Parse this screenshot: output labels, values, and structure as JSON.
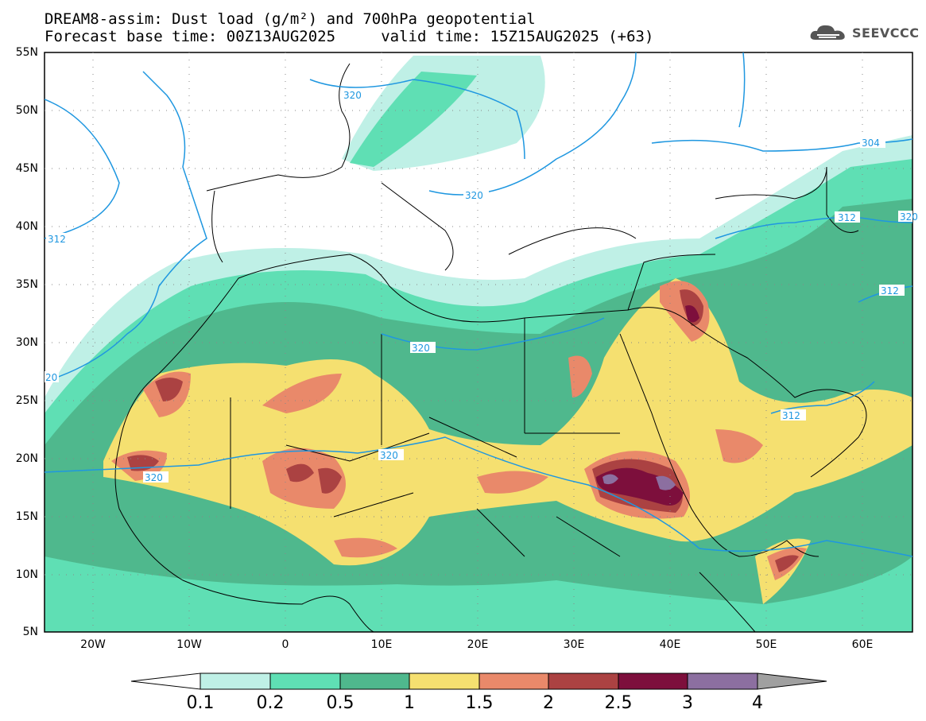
{
  "header": {
    "title_line1": "DREAM8-assim: Dust load (g/m²) and 700hPa geopotential",
    "title_line2": "Forecast base time: 00Z13AUG2025     valid time: 15Z15AUG2025 (+63)"
  },
  "logo": {
    "text": "SEEVCCC",
    "icon": "cloud-logo-icon"
  },
  "map": {
    "lon_range": [
      -25,
      65
    ],
    "lat_range": [
      5,
      55
    ],
    "lat_labels": [
      "55N",
      "50N",
      "45N",
      "40N",
      "35N",
      "30N",
      "25N",
      "20N",
      "15N",
      "10N",
      "5N"
    ],
    "lon_labels": [
      "20W",
      "10W",
      "0",
      "10E",
      "20E",
      "30E",
      "40E",
      "50E",
      "60E"
    ],
    "contour_labels": [
      "320",
      "320",
      "304",
      "312",
      "312",
      "312",
      "320",
      "320",
      "320",
      "320",
      "312",
      "20"
    ],
    "contour_color": "#1f97e0"
  },
  "colorbar": {
    "labels": [
      "0.1",
      "0.2",
      "0.5",
      "1",
      "1.5",
      "2",
      "2.5",
      "3",
      "4"
    ],
    "colors": [
      "#bff0e6",
      "#5fdfb4",
      "#4fb88d",
      "#f5e070",
      "#e9896a",
      "#ab4242",
      "#7d0f3c",
      "#8c6fa0",
      "#a0a0a0"
    ]
  }
}
